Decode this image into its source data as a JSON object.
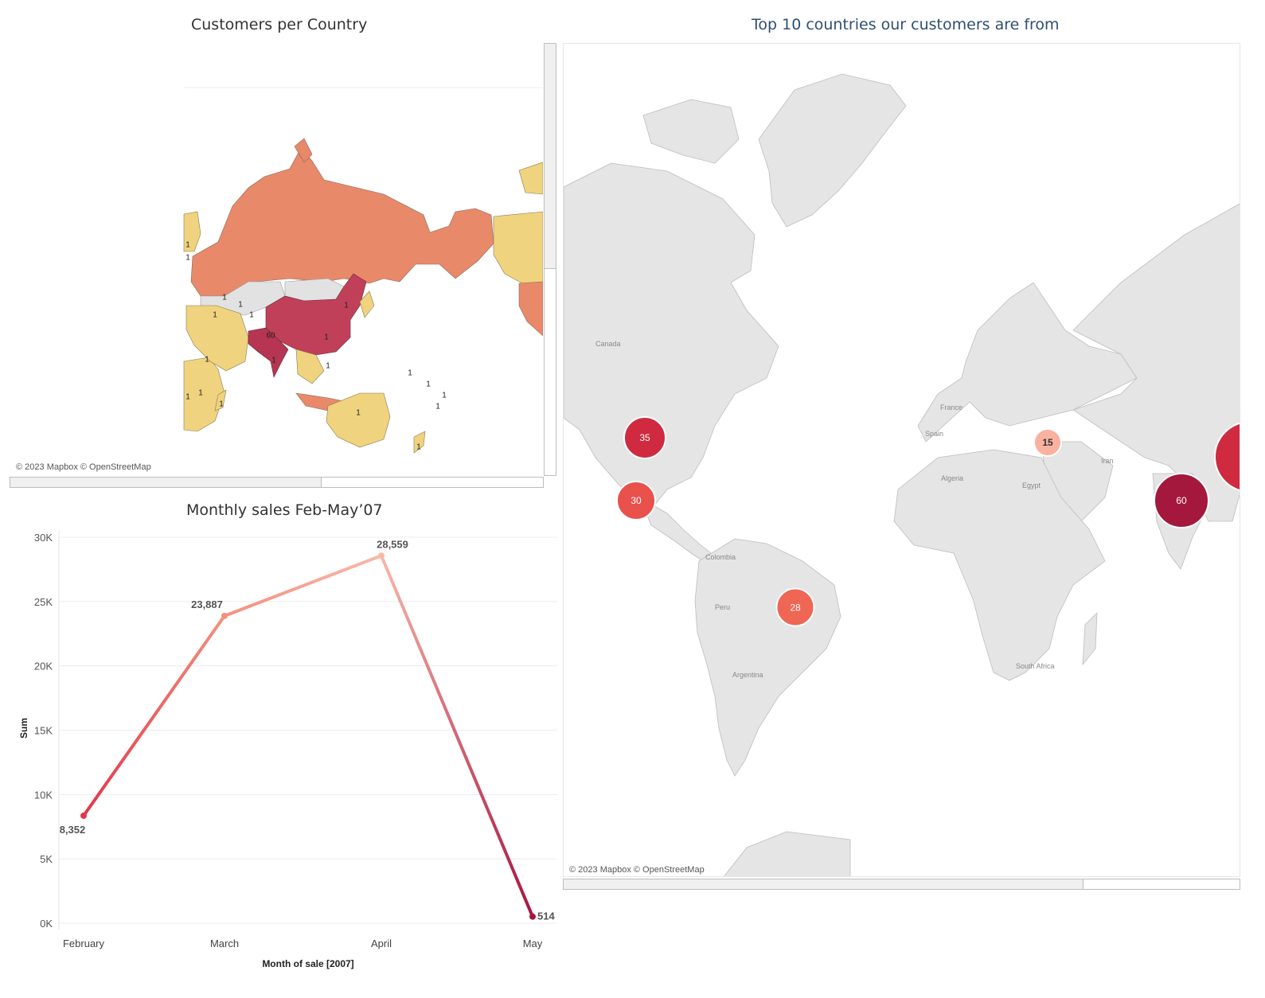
{
  "left_map": {
    "title": "Customers per Country",
    "attribution": "© 2023 Mapbox © OpenStreetMap",
    "labels": [
      "60",
      "1",
      "1",
      "1",
      "1",
      "1",
      "1",
      "1",
      "1",
      "1",
      "1",
      "1",
      "1",
      "1",
      "1",
      "1",
      "1",
      "1",
      "1",
      "1",
      "1"
    ],
    "colors": {
      "high": "#c0405a",
      "mid": "#e8896a",
      "low": "#f0d37e",
      "none": "#e2e2e2"
    }
  },
  "right_map": {
    "title": "Top 10 countries our customers are from",
    "attribution": "© 2023 Mapbox © OpenStreetMap",
    "place_labels": [
      "Canada",
      "France",
      "Spain",
      "Algeria",
      "Egypt",
      "Iran",
      "Colombia",
      "Peru",
      "Argentina",
      "South Africa"
    ],
    "bubbles": [
      {
        "value": "35",
        "color": "#cf2a3f"
      },
      {
        "value": "30",
        "color": "#e9514c"
      },
      {
        "value": "28",
        "color": "#ef6655"
      },
      {
        "value": "15",
        "color": "#f9b1a0"
      },
      {
        "value": "60",
        "color": "#a5183d"
      }
    ]
  },
  "chart": {
    "title": "Monthly sales Feb-May’07",
    "xlabel": "Month of sale  [2007]",
    "ylabel": "Sum",
    "yticks": [
      "30K",
      "25K",
      "20K",
      "15K",
      "10K",
      "5K",
      "0K"
    ],
    "data_labels": [
      "8,352",
      "23,887",
      "28,559",
      "514"
    ]
  },
  "chart_data": {
    "type": "line",
    "title": "Monthly sales Feb-May’07",
    "xlabel": "Month of sale  [2007]",
    "ylabel": "Sum",
    "categories": [
      "February",
      "March",
      "April",
      "May"
    ],
    "values": [
      8352,
      23887,
      28559,
      514
    ],
    "ylim": [
      0,
      30000
    ],
    "grid": true,
    "colors": [
      "#e2364a",
      "#f3917e",
      "#f9b8aa",
      "#a8143e"
    ]
  }
}
